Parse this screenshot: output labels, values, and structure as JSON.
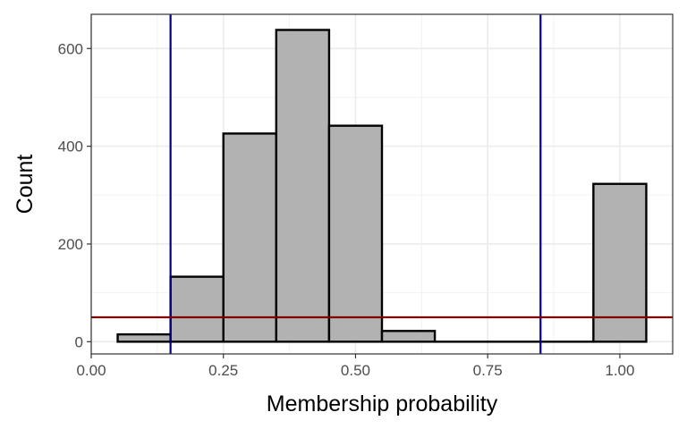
{
  "chart_data": {
    "type": "bar",
    "title": "",
    "xlabel": "Membership probability",
    "ylabel": "Count",
    "xlim": [
      0.0,
      1.1
    ],
    "ylim": [
      -25,
      670
    ],
    "x_ticks": [
      0.0,
      0.25,
      0.5,
      0.75,
      1.0
    ],
    "x_tick_labels": [
      "0.00",
      "0.25",
      "0.50",
      "0.75",
      "1.00"
    ],
    "y_ticks": [
      0,
      200,
      400,
      600
    ],
    "y_tick_labels": [
      "0",
      "200",
      "400",
      "600"
    ],
    "bins": [
      {
        "x0": 0.05,
        "x1": 0.15,
        "count": 15
      },
      {
        "x0": 0.15,
        "x1": 0.25,
        "count": 133
      },
      {
        "x0": 0.25,
        "x1": 0.35,
        "count": 426
      },
      {
        "x0": 0.35,
        "x1": 0.45,
        "count": 638
      },
      {
        "x0": 0.45,
        "x1": 0.55,
        "count": 442
      },
      {
        "x0": 0.55,
        "x1": 0.65,
        "count": 22
      },
      {
        "x0": 0.65,
        "x1": 0.75,
        "count": 0
      },
      {
        "x0": 0.75,
        "x1": 0.85,
        "count": 0
      },
      {
        "x0": 0.85,
        "x1": 0.95,
        "count": 0
      },
      {
        "x0": 0.95,
        "x1": 1.05,
        "count": 323
      }
    ],
    "vlines": [
      {
        "x": 0.15,
        "color": "#000080"
      },
      {
        "x": 0.85,
        "color": "#000080"
      }
    ],
    "hlines": [
      {
        "y": 50,
        "color": "#800000"
      }
    ],
    "bar_fill": "#b2b2b2",
    "bar_stroke": "#000000",
    "grid": true,
    "legend": "none"
  }
}
